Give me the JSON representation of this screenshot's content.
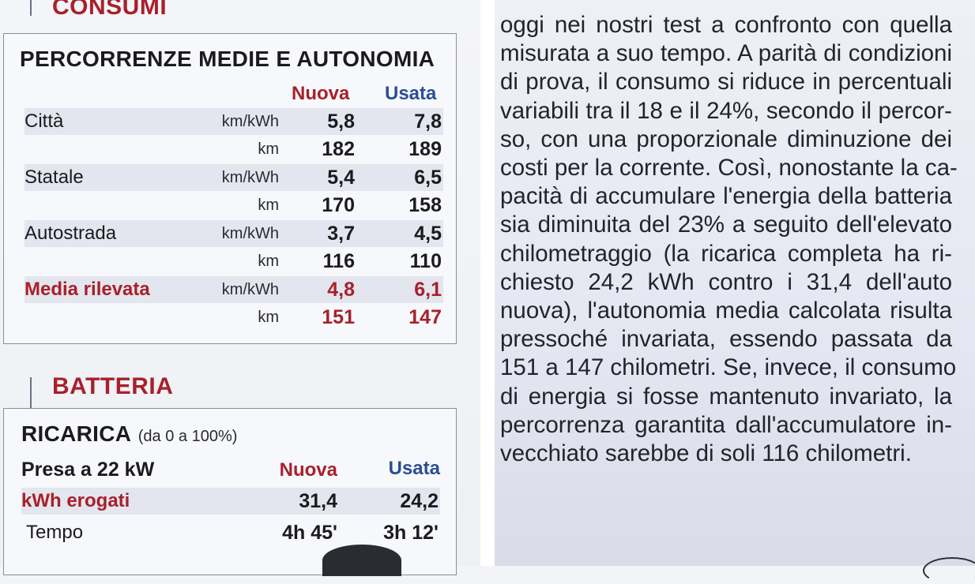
{
  "consumi": {
    "section_title": "CONSUMI",
    "box_title": "PERCORRENZE MEDIE E AUTONOMIA",
    "col_new": "Nuova",
    "col_used": "Usata",
    "rows": [
      {
        "label": "Città",
        "unit": "km/kWh",
        "new": "5,8",
        "used": "7,8"
      },
      {
        "label": "",
        "unit": "km",
        "new": "182",
        "used": "189"
      },
      {
        "label": "Statale",
        "unit": "km/kWh",
        "new": "5,4",
        "used": "6,5"
      },
      {
        "label": "",
        "unit": "km",
        "new": "170",
        "used": "158"
      },
      {
        "label": "Autostrada",
        "unit": "km/kWh",
        "new": "3,7",
        "used": "4,5"
      },
      {
        "label": "",
        "unit": "km",
        "new": "116",
        "used": "110"
      },
      {
        "label": "Media rilevata",
        "unit": "km/kWh",
        "new": "4,8",
        "used": "6,1"
      },
      {
        "label": "",
        "unit": "km",
        "new": "151",
        "used": "147"
      }
    ]
  },
  "batteria": {
    "section_title": "BATTERIA",
    "box_title": "RICARICA",
    "box_subtitle": "(da 0 a 100%)",
    "presa_label": "Presa a 22 kW",
    "col_new": "Nuova",
    "col_used": "Usata",
    "kwh_label": "kWh erogati",
    "kwh_new": "31,4",
    "kwh_used": "24,2",
    "tempo_label": "Tempo",
    "tempo_new": "4h 45'",
    "tempo_used": "3h 12'"
  },
  "article_lines": [
    "oggi nei nostri test a confronto con quella",
    "misurata a suo tempo. A parità di condizioni",
    "di prova, il consumo si riduce in percentuali",
    "variabili tra il 18 e il 24%, secondo il percor-",
    "so, con una proporzionale diminuzione dei",
    "costi per la corrente. Così, nonostante la ca-",
    "pacità di accumulare l'energia della batteria",
    "sia diminuita del 23% a seguito dell'elevato",
    "chilometraggio (la ricarica completa ha ri-",
    "chiesto 24,2 kWh contro i 31,4 dell'auto",
    "nuova), l'autonomia media calcolata risulta",
    "pressoché invariata, essendo passata da",
    "151 a 147 chilometri. Se, invece, il consumo",
    "di energia si fosse mantenuto invariato, la",
    "percorrenza garantita dall'accumulatore in-",
    "vecchiato sarebbe di soli 116 chilometri."
  ],
  "colors": {
    "accent_red": "#a8202a",
    "accent_blue": "#2b4e93"
  }
}
